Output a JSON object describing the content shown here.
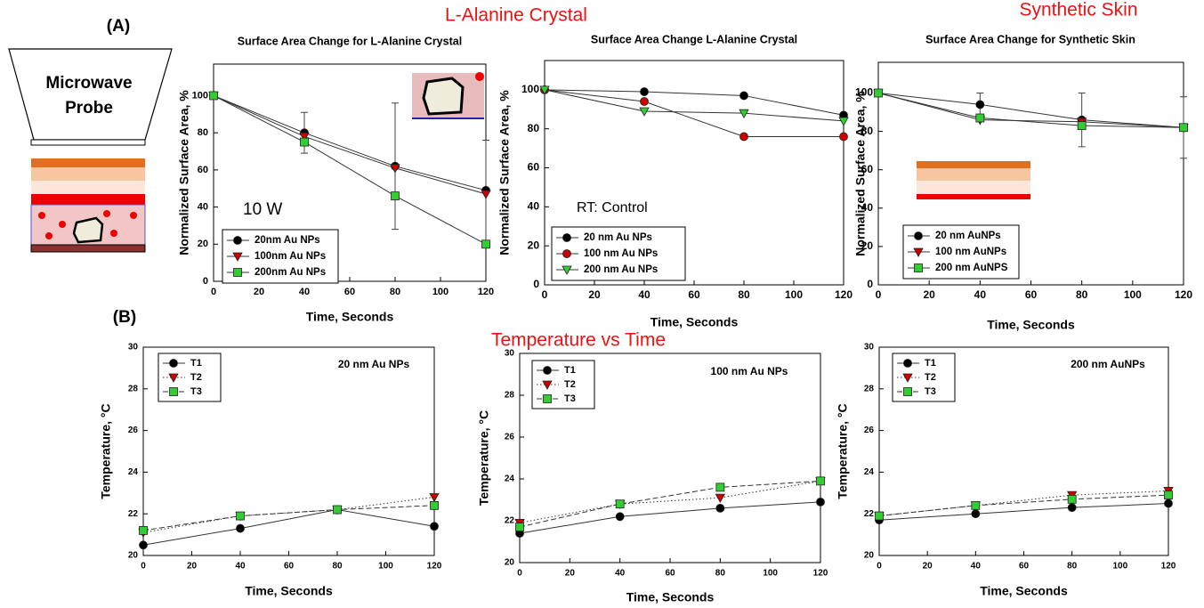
{
  "figure": {
    "panel_a": "(A)",
    "panel_b": "(B)",
    "probe_label": "Microwave Probe",
    "crystal_heading": "L-Alanine Crystal",
    "skin_heading": "Synthetic Skin",
    "temperature_heading": "Temperature vs Time"
  },
  "chart_data": [
    {
      "type": "line",
      "title": "Surface Area Change for L-Alanine Crystal",
      "x_label": "Time, Seconds",
      "y_label": "Normalized Surface Area, %",
      "annotation": "10 W",
      "x": [
        0,
        40,
        80,
        120
      ],
      "xlim": [
        0,
        120
      ],
      "xticks": [
        0,
        20,
        40,
        60,
        80,
        100,
        120
      ],
      "ylim": [
        0,
        117
      ],
      "yticks": [
        0,
        20,
        40,
        60,
        80,
        100
      ],
      "legend": "lower left",
      "series": [
        {
          "name": "20nm Au NPs",
          "color": "#000000",
          "marker": "circle",
          "dash": "solid",
          "values": [
            100,
            80,
            62,
            49
          ],
          "errors": [
            0,
            11,
            34,
            27
          ]
        },
        {
          "name": "100nm Au NPs",
          "color": "#cc0000",
          "marker": "triangle-down",
          "dash": "solid",
          "values": [
            100,
            78,
            61,
            47
          ]
        },
        {
          "name": "200nm Au NPs",
          "color": "#33cc33",
          "marker": "square",
          "dash": "solid",
          "values": [
            100,
            75,
            46,
            20
          ]
        }
      ]
    },
    {
      "type": "line",
      "title": "Surface Area Change L-Alanine Crystal",
      "x_label": "Time, Seconds",
      "y_label": "Normalized Surface Area, %",
      "annotation": "RT: Control",
      "x": [
        0,
        40,
        80,
        120
      ],
      "xlim": [
        0,
        120
      ],
      "xticks": [
        0,
        20,
        40,
        60,
        80,
        100,
        120
      ],
      "ylim": [
        0,
        115
      ],
      "yticks": [
        0,
        20,
        40,
        60,
        80,
        100
      ],
      "legend": "lower left",
      "series": [
        {
          "name": "20 nm Au NPs",
          "color": "#000000",
          "marker": "circle",
          "dash": "solid",
          "values": [
            100,
            99,
            97,
            87
          ]
        },
        {
          "name": "100 nm Au NPs",
          "color": "#cc0000",
          "marker": "circle",
          "dash": "solid",
          "values": [
            100,
            94,
            76,
            76
          ]
        },
        {
          "name": "200 nm Au NPs",
          "color": "#33cc33",
          "marker": "triangle-down",
          "dash": "solid",
          "values": [
            100,
            89,
            88,
            84
          ]
        }
      ]
    },
    {
      "type": "line",
      "title": "Surface Area Change for Synthetic Skin",
      "x_label": "Time, Seconds",
      "y_label": "Normalized Surface Area, %",
      "x": [
        0,
        40,
        80,
        120
      ],
      "xlim": [
        0,
        120
      ],
      "xticks": [
        0,
        20,
        40,
        60,
        80,
        100,
        120
      ],
      "ylim": [
        0,
        116
      ],
      "yticks": [
        0,
        20,
        40,
        60,
        80,
        100
      ],
      "legend": "lower left",
      "series": [
        {
          "name": "20 nm AuNPs",
          "color": "#000000",
          "marker": "circle",
          "dash": "solid",
          "values": [
            100,
            94,
            86,
            82
          ],
          "errors": [
            0,
            6,
            14,
            16
          ]
        },
        {
          "name": "100 nm AuNPs",
          "color": "#cc0000",
          "marker": "triangle-down",
          "dash": "solid",
          "values": [
            100,
            86,
            85,
            82
          ]
        },
        {
          "name": "200 nm AuNPS",
          "color": "#33cc33",
          "marker": "square",
          "dash": "solid",
          "values": [
            100,
            87,
            83,
            82
          ]
        }
      ]
    },
    {
      "type": "line",
      "x_label": "Time, Seconds",
      "y_label": "Temperature, °C",
      "annotation": "20 nm Au NPs",
      "x": [
        0,
        40,
        80,
        120
      ],
      "xlim": [
        0,
        120
      ],
      "xticks": [
        0,
        20,
        40,
        60,
        80,
        100,
        120
      ],
      "ylim": [
        20,
        30
      ],
      "yticks": [
        20,
        22,
        24,
        26,
        28,
        30
      ],
      "legend": "upper left",
      "series": [
        {
          "name": "T1",
          "color": "#000000",
          "marker": "circle",
          "dash": "solid",
          "values": [
            20.5,
            21.3,
            22.2,
            21.4
          ]
        },
        {
          "name": "T2",
          "color": "#cc0000",
          "marker": "triangle-down",
          "dash": "dotted",
          "values": [
            21.1,
            21.9,
            22.2,
            22.8
          ]
        },
        {
          "name": "T3",
          "color": "#33cc33",
          "marker": "square",
          "dash": "dashed",
          "values": [
            21.2,
            21.9,
            22.2,
            22.4
          ]
        }
      ]
    },
    {
      "type": "line",
      "x_label": "Time, Seconds",
      "y_label": "Temperature, °C",
      "annotation": "100 nm Au NPs",
      "x": [
        0,
        40,
        80,
        120
      ],
      "xlim": [
        0,
        120
      ],
      "xticks": [
        0,
        20,
        40,
        60,
        80,
        100,
        120
      ],
      "ylim": [
        20,
        30
      ],
      "yticks": [
        20,
        22,
        24,
        26,
        28,
        30
      ],
      "legend": "upper left",
      "series": [
        {
          "name": "T1",
          "color": "#000000",
          "marker": "circle",
          "dash": "solid",
          "values": [
            21.4,
            22.2,
            22.6,
            22.9
          ]
        },
        {
          "name": "T2",
          "color": "#cc0000",
          "marker": "triangle-down",
          "dash": "dotted",
          "values": [
            21.9,
            22.8,
            23.1,
            23.9
          ]
        },
        {
          "name": "T3",
          "color": "#33cc33",
          "marker": "square",
          "dash": "dashed",
          "values": [
            21.7,
            22.8,
            23.6,
            23.9
          ]
        }
      ]
    },
    {
      "type": "line",
      "x_label": "Time, Seconds",
      "y_label": "Temperature, °C",
      "annotation": "200 nm AuNPs",
      "x": [
        0,
        40,
        80,
        120
      ],
      "xlim": [
        0,
        120
      ],
      "xticks": [
        0,
        20,
        40,
        60,
        80,
        100,
        120
      ],
      "ylim": [
        20,
        30
      ],
      "yticks": [
        20,
        22,
        24,
        26,
        28,
        30
      ],
      "legend": "upper left",
      "series": [
        {
          "name": "T1",
          "color": "#000000",
          "marker": "circle",
          "dash": "solid",
          "values": [
            21.7,
            22.0,
            22.3,
            22.5
          ]
        },
        {
          "name": "T2",
          "color": "#cc0000",
          "marker": "triangle-down",
          "dash": "dotted",
          "values": [
            21.9,
            22.4,
            22.9,
            23.1
          ]
        },
        {
          "name": "T3",
          "color": "#33cc33",
          "marker": "square",
          "dash": "dashed",
          "values": [
            21.9,
            22.4,
            22.7,
            22.9
          ]
        }
      ]
    }
  ]
}
